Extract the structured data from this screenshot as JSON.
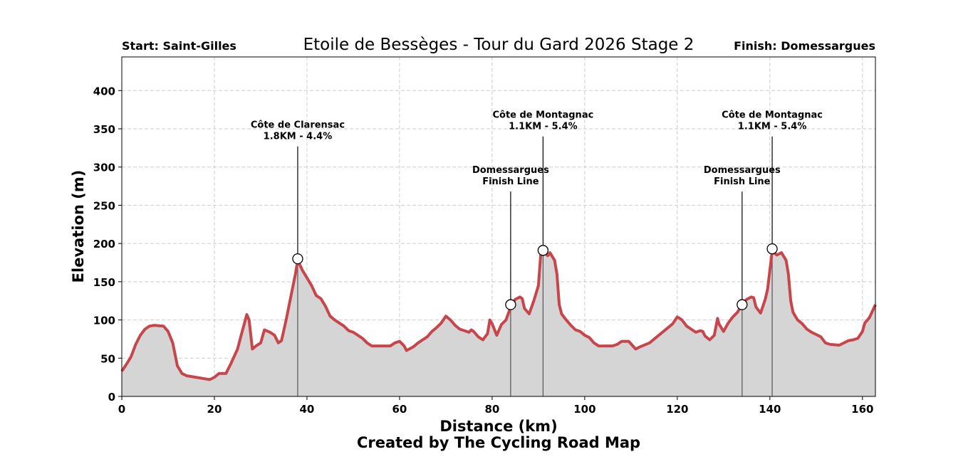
{
  "chart_data": {
    "type": "area",
    "title": "Etoile de Bessèges - Tour du Gard 2026 Stage 2",
    "start_label": "Start: Saint-Gilles",
    "finish_label": "Finish: Domessargues",
    "xlabel": "Distance (km)",
    "ylabel": "Elevation (m)",
    "credit": "Created by The Cycling Road Map",
    "xlim": [
      0,
      162.8
    ],
    "ylim": [
      0,
      444
    ],
    "xticks": [
      0,
      20,
      40,
      60,
      80,
      100,
      120,
      140,
      160
    ],
    "yticks": [
      0,
      50,
      100,
      150,
      200,
      250,
      300,
      350,
      400
    ],
    "grid": true,
    "line_color": "#c8454b",
    "fill_color": "#d5d5d5",
    "profile": {
      "x": [
        0,
        1,
        2,
        3,
        4,
        5,
        6,
        7,
        9,
        10,
        11,
        12,
        13,
        14,
        16,
        18,
        19,
        20,
        21,
        22.5,
        23.5,
        25,
        26,
        27,
        27.5,
        28.2,
        29,
        30,
        30.8,
        32,
        33,
        33.8,
        34.5,
        35.5,
        36.5,
        37.5,
        38,
        39,
        40,
        41,
        42,
        43,
        44,
        45,
        46,
        47,
        48,
        49,
        50,
        51,
        52,
        53,
        54,
        56,
        58,
        59,
        60,
        61,
        61.5,
        63,
        64,
        66,
        67,
        68,
        69,
        70,
        71,
        72,
        73,
        74,
        75,
        75.5,
        76,
        77,
        78,
        79,
        79.5,
        80,
        81,
        82,
        83,
        84,
        85,
        86,
        86.5,
        87,
        88,
        89,
        90,
        90.5,
        91,
        92,
        92.5,
        93.5,
        94,
        94.5,
        95,
        96,
        97,
        98,
        99,
        100,
        101,
        102,
        103,
        106,
        107,
        108,
        109.5,
        111,
        112,
        114,
        116,
        118,
        119,
        120,
        121,
        122,
        123,
        124,
        125,
        125.5,
        126,
        127,
        128,
        128.7,
        129,
        130,
        131,
        132,
        133,
        134,
        135,
        136,
        136.5,
        137,
        138,
        139,
        139.5,
        140,
        140.5,
        141.5,
        142.5,
        143.5,
        144,
        144.5,
        145,
        146,
        147,
        148,
        149,
        150,
        151,
        152,
        153,
        155,
        156,
        157,
        158,
        159,
        160,
        160.5,
        161.5,
        162.8
      ],
      "y": [
        33,
        42,
        52,
        68,
        80,
        88,
        92,
        93,
        92,
        85,
        70,
        40,
        30,
        27,
        25,
        23,
        22,
        25,
        30,
        30,
        42,
        62,
        85,
        107,
        100,
        62,
        66,
        70,
        87,
        84,
        80,
        70,
        73,
        100,
        130,
        160,
        178,
        165,
        155,
        145,
        132,
        128,
        118,
        105,
        100,
        96,
        92,
        86,
        84,
        80,
        76,
        70,
        66,
        66,
        66,
        70,
        72,
        66,
        60,
        65,
        70,
        78,
        85,
        90,
        96,
        105,
        100,
        93,
        88,
        86,
        84,
        87,
        85,
        78,
        74,
        82,
        100,
        95,
        80,
        94,
        100,
        117,
        127,
        130,
        128,
        115,
        108,
        125,
        145,
        185,
        190,
        184,
        188,
        178,
        160,
        120,
        108,
        100,
        93,
        87,
        85,
        80,
        77,
        70,
        66,
        66,
        68,
        72,
        72,
        62,
        65,
        70,
        80,
        90,
        95,
        104,
        100,
        92,
        88,
        84,
        86,
        85,
        79,
        74,
        80,
        102,
        95,
        85,
        96,
        104,
        110,
        120,
        127,
        130,
        129,
        117,
        109,
        127,
        140,
        165,
        190,
        185,
        188,
        178,
        160,
        125,
        110,
        100,
        95,
        88,
        84,
        81,
        78,
        70,
        68,
        67,
        70,
        73,
        74,
        76,
        85,
        96,
        103,
        120
      ]
    },
    "annotations": [
      {
        "lines": [
          "Côte de Clarensac",
          "1.8KM - 4.4%"
        ],
        "x": 38,
        "y": 180,
        "label_y": 327
      },
      {
        "lines": [
          "Domessargues",
          "Finish Line"
        ],
        "x": 84,
        "y": 120,
        "label_y": 268
      },
      {
        "lines": [
          "Côte de Montagnac",
          "1.1KM - 5.4%"
        ],
        "x": 91,
        "y": 191,
        "label_y": 340
      },
      {
        "lines": [
          "Domessargues",
          "Finish Line"
        ],
        "x": 134,
        "y": 120,
        "label_y": 268
      },
      {
        "lines": [
          "Côte de Montagnac",
          "1.1KM - 5.4%"
        ],
        "x": 140.5,
        "y": 193,
        "label_y": 340
      }
    ]
  }
}
